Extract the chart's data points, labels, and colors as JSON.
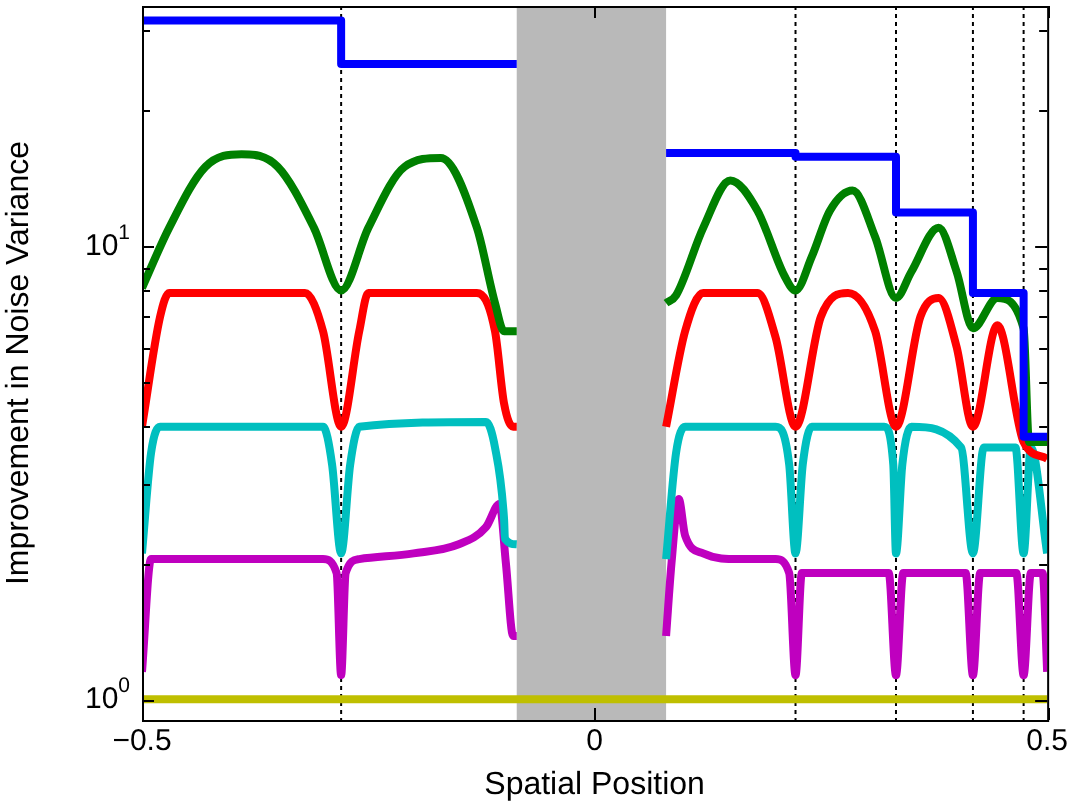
{
  "chart_data": {
    "type": "line",
    "xlabel": "Spatial Position",
    "ylabel": "Improvement in Noise Variance",
    "log": "y",
    "grid": false,
    "legend": false,
    "marker": "none",
    "line_style": "solid",
    "xlim": [
      -0.5,
      0.5
    ],
    "xticks": [
      -0.5,
      0,
      0.5
    ],
    "ylim": [
      0.9,
      34
    ],
    "yticks": [
      {
        "value": 1,
        "label": "10$^{0}$"
      },
      {
        "value": 2,
        "label": null
      },
      {
        "value": 3,
        "label": null
      },
      {
        "value": 4,
        "label": null
      },
      {
        "value": 5,
        "label": null
      },
      {
        "value": 6,
        "label": null
      },
      {
        "value": 7,
        "label": null
      },
      {
        "value": 8,
        "label": null
      },
      {
        "value": 9,
        "label": null
      },
      {
        "value": 10,
        "label": "10$^{1}$"
      },
      {
        "value": 20,
        "label": null
      },
      {
        "value": 30,
        "label": null
      }
    ],
    "ref_lines": [
      {
        "axis": "x",
        "value": -0.28,
        "line_style": "dotted",
        "color": "#000000"
      },
      {
        "axis": "x",
        "value": 0.222,
        "line_style": "dotted",
        "color": "#000000"
      },
      {
        "axis": "x",
        "value": 0.333,
        "line_style": "dotted",
        "color": "#000000"
      },
      {
        "axis": "x",
        "value": 0.418,
        "line_style": "dotted",
        "color": "#000000"
      },
      {
        "axis": "x",
        "value": 0.474,
        "line_style": "dotted",
        "color": "#000000"
      }
    ],
    "bands": [
      {
        "axis": "x",
        "from": -0.086,
        "to": 0.079,
        "color": "#808080"
      }
    ],
    "series": [
      {
        "type": "step",
        "color": "#0000ff",
        "x": [
          -0.5,
          -0.28,
          -0.086,
          0,
          0.079,
          0.222,
          0.333,
          0.418,
          0.474,
          0.5
        ],
        "values": [
          31.6,
          25.3,
          25.3,
          null,
          16.1,
          15.8,
          11.9,
          7.9,
          3.8,
          3.8
        ]
      },
      {
        "color": "#008000",
        "x": [
          -0.5,
          -0.47,
          -0.43,
          -0.39,
          -0.35,
          -0.31,
          -0.28,
          -0.25,
          -0.21,
          -0.17,
          -0.13,
          -0.11,
          -0.1,
          -0.086,
          0,
          0.079,
          0.09,
          0.12,
          0.15,
          0.18,
          0.21,
          0.222,
          0.24,
          0.26,
          0.285,
          0.31,
          0.333,
          0.35,
          0.38,
          0.4,
          0.418,
          0.445,
          0.474,
          0.48,
          0.5
        ],
        "values": [
          8.1,
          11,
          15,
          16,
          15,
          11,
          8.0,
          11,
          15,
          15.7,
          11,
          7.5,
          6.5,
          6.5,
          null,
          7.5,
          7.8,
          11,
          14,
          12,
          8.6,
          8,
          9.5,
          12,
          13.3,
          10.5,
          7.7,
          8.8,
          11,
          8.8,
          6.6,
          7.7,
          6.6,
          3.7,
          3.7
        ]
      },
      {
        "color": "#ff0000",
        "x": [
          -0.5,
          -0.48,
          -0.47,
          -0.32,
          -0.3,
          -0.28,
          -0.26,
          -0.25,
          -0.13,
          -0.11,
          -0.1,
          -0.09,
          -0.086,
          0,
          0.079,
          0.1,
          0.12,
          0.18,
          0.2,
          0.222,
          0.25,
          0.28,
          0.31,
          0.333,
          0.36,
          0.38,
          0.4,
          0.418,
          0.445,
          0.474,
          0.5
        ],
        "values": [
          4.0,
          7.0,
          7.9,
          7.9,
          6.5,
          4.0,
          6.5,
          7.9,
          7.9,
          6.5,
          4.5,
          4.0,
          4.0,
          null,
          4.0,
          6.5,
          7.9,
          7.9,
          6.3,
          4.0,
          7.0,
          7.9,
          6.5,
          4.0,
          7.0,
          7.7,
          6.0,
          4.0,
          6.7,
          3.7,
          3.4
        ]
      },
      {
        "color": "#00bfbf",
        "x": [
          -0.5,
          -0.49,
          -0.48,
          -0.3,
          -0.29,
          -0.28,
          -0.27,
          -0.26,
          -0.12,
          -0.11,
          -0.1,
          -0.099,
          -0.086,
          0,
          0.079,
          0.09,
          0.1,
          0.2,
          0.215,
          0.222,
          0.23,
          0.24,
          0.32,
          0.33,
          0.333,
          0.34,
          0.35,
          0.405,
          0.418,
          0.43,
          0.465,
          0.474,
          0.482,
          0.5
        ],
        "values": [
          2.1,
          3.5,
          4.0,
          4.0,
          3.3,
          2.1,
          3.3,
          4.0,
          4.1,
          3.6,
          2.5,
          2.26,
          2.2,
          null,
          2.04,
          3.5,
          4.0,
          4.0,
          3.3,
          2.1,
          3.3,
          4.0,
          4.0,
          3.3,
          2.1,
          3.3,
          4.0,
          3.6,
          2.1,
          3.6,
          3.6,
          2.1,
          3.6,
          2.1
        ]
      },
      {
        "color": "#bf00bf",
        "x": [
          -0.5,
          -0.49,
          -0.3,
          -0.285,
          -0.28,
          -0.275,
          -0.26,
          -0.2,
          -0.15,
          -0.12,
          -0.105,
          -0.098,
          -0.09,
          -0.086,
          0,
          0.079,
          0.085,
          0.093,
          0.1,
          0.12,
          0.16,
          0.2,
          0.215,
          0.222,
          0.229,
          0.325,
          0.333,
          0.341,
          0.41,
          0.418,
          0.426,
          0.466,
          0.474,
          0.482,
          0.495,
          0.5
        ],
        "values": [
          1.15,
          2.04,
          2.04,
          1.9,
          1.13,
          1.9,
          2.04,
          2.1,
          2.2,
          2.4,
          2.7,
          2.0,
          1.38,
          1.38,
          null,
          1.38,
          2.0,
          2.77,
          2.3,
          2.1,
          2.04,
          2.04,
          1.9,
          1.13,
          1.9,
          1.9,
          1.13,
          1.9,
          1.9,
          1.13,
          1.9,
          1.9,
          1.13,
          1.9,
          1.9,
          1.15
        ]
      },
      {
        "color": "#bfbf00",
        "x": [
          -0.5,
          0.5
        ],
        "values": [
          1.0,
          1.0
        ]
      }
    ]
  }
}
